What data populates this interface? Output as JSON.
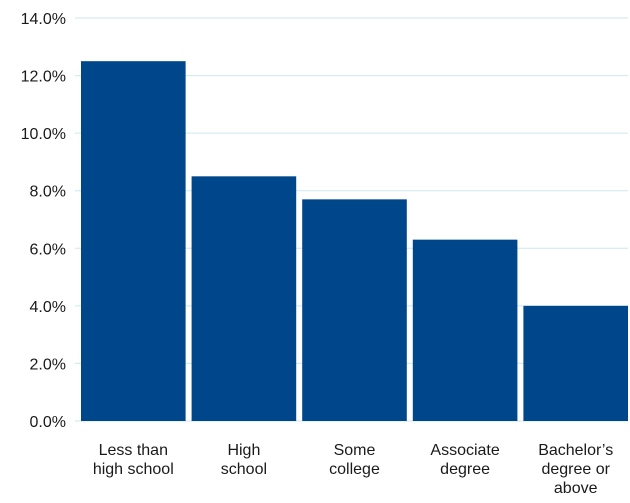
{
  "chart_data": {
    "type": "bar",
    "title": "",
    "xlabel": "",
    "ylabel": "",
    "categories": [
      [
        "Less than",
        "high school"
      ],
      [
        "High",
        "school"
      ],
      [
        "Some",
        "college"
      ],
      [
        "Associate",
        "degree"
      ],
      [
        "Bachelor’s",
        "degree or",
        "above"
      ]
    ],
    "values": [
      12.5,
      8.5,
      7.7,
      6.3,
      4.0
    ],
    "ylim": [
      0,
      14
    ],
    "yticks": [
      "0.0%",
      "2.0%",
      "4.0%",
      "6.0%",
      "8.0%",
      "10.0%",
      "12.0%",
      "14.0%"
    ],
    "grid": true,
    "legend": "none",
    "colors": {
      "bar": "#00468b",
      "grid": "#cfe6ee",
      "text": "#1a1a1a"
    }
  }
}
